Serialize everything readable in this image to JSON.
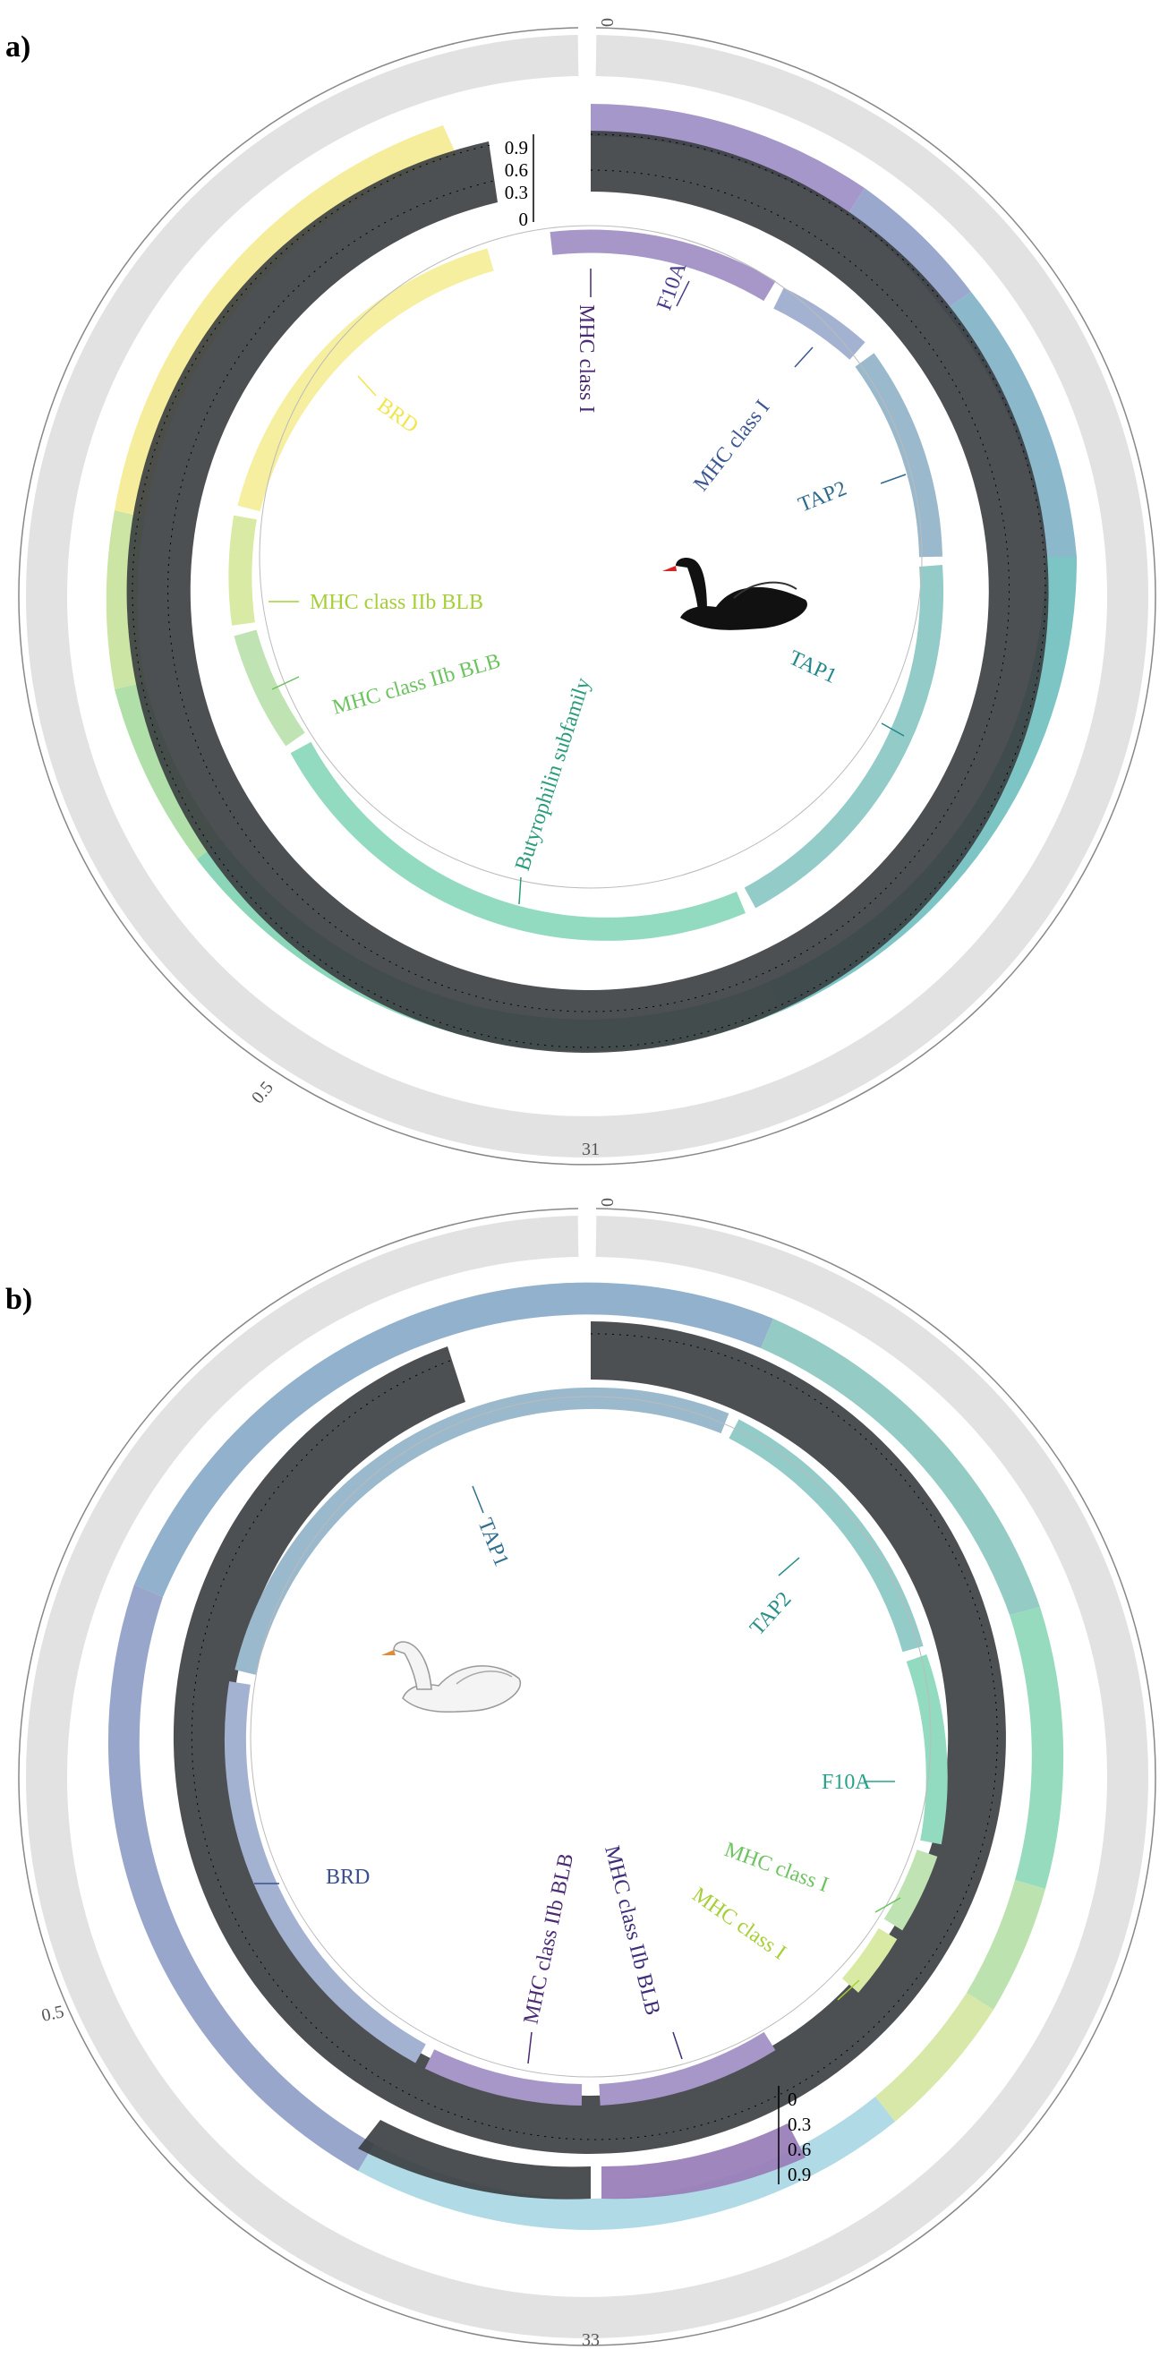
{
  "panels": [
    {
      "label": "a)",
      "swan_icon": "black-swan-icon",
      "outer_ticks": {
        "start": "0",
        "middle": "0.5",
        "end": "31"
      },
      "y_axis_ticks": [
        "0.9",
        "0.6",
        "0.3",
        "0"
      ],
      "genes": [
        {
          "name": "MHC class I",
          "color": "#4b2a73"
        },
        {
          "name": "F10A",
          "color": "#4a3a8c"
        },
        {
          "name": "MHC class I",
          "color": "#3b5793"
        },
        {
          "name": "TAP2",
          "color": "#306a8e"
        },
        {
          "name": "TAP1",
          "color": "#20878a"
        },
        {
          "name": "Butyrophilin subfamily",
          "color": "#2a9c7a"
        },
        {
          "name": "MHC class IIb BLB",
          "color": "#6cc35f"
        },
        {
          "name": "MHC class IIb BLB",
          "color": "#a6cf38"
        },
        {
          "name": "BRD",
          "color": "#f2e54a"
        }
      ]
    },
    {
      "label": "b)",
      "swan_icon": "white-swan-icon",
      "outer_ticks": {
        "start": "0",
        "middle": "0.5",
        "end": "33"
      },
      "y_axis_ticks": [
        "0",
        "0.3",
        "0.6",
        "0.9"
      ],
      "genes": [
        {
          "name": "TAP1",
          "color": "#2f6f8f"
        },
        {
          "name": "TAP2",
          "color": "#2a8f8a"
        },
        {
          "name": "F10A",
          "color": "#28a28a"
        },
        {
          "name": "MHC class I",
          "color": "#6cc35f"
        },
        {
          "name": "MHC class I",
          "color": "#a6cf38"
        },
        {
          "name": "MHC class IIb BLB",
          "color": "#4b2a73"
        },
        {
          "name": "MHC class IIb BLB",
          "color": "#3e2d78"
        },
        {
          "name": "BRD",
          "color": "#3b4f90"
        }
      ]
    }
  ]
}
